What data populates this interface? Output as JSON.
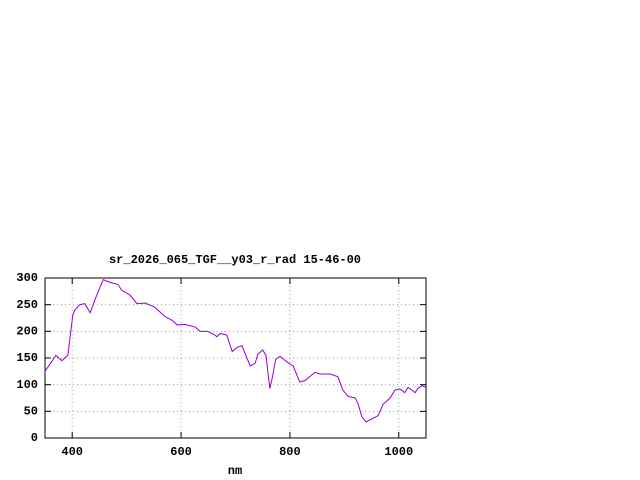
{
  "chart_data": {
    "type": "line",
    "title": "sr_2026_065_TGF__y03_r_rad 15-46-00",
    "x_label": "nm",
    "x": [
      350,
      370,
      381,
      392,
      401,
      405,
      414,
      423,
      433,
      442,
      457,
      469,
      484,
      491,
      506,
      519,
      534,
      552,
      570,
      583,
      593,
      607,
      626,
      635,
      648,
      659,
      666,
      672,
      684,
      694,
      703,
      712,
      717,
      727,
      736,
      741,
      750,
      756,
      763,
      767,
      774,
      782,
      795,
      806,
      818,
      828,
      846,
      855,
      874,
      888,
      897,
      907,
      920,
      925,
      932,
      940,
      951,
      962,
      971,
      984,
      993,
      1002,
      1011,
      1017,
      1024,
      1030,
      1035,
      1043,
      1050
    ],
    "series": [
      {
        "color": "#9400d3",
        "values": [
          125,
          155,
          145,
          155,
          230,
          240,
          250,
          252,
          235,
          260,
          297,
          292,
          288,
          277,
          268,
          252,
          253,
          245,
          228,
          221,
          212,
          213,
          208,
          200,
          200,
          195,
          190,
          196,
          193,
          162,
          170,
          173,
          160,
          135,
          140,
          157,
          165,
          155,
          93,
          110,
          148,
          153,
          142,
          135,
          105,
          108,
          123,
          120,
          120,
          115,
          90,
          78,
          75,
          65,
          40,
          30,
          36,
          42,
          63,
          75,
          90,
          92,
          85,
          95,
          90,
          85,
          93,
          98,
          95
        ]
      }
    ],
    "xlim": [
      350,
      1050
    ],
    "ylim": [
      0,
      300
    ],
    "xticks": [
      400,
      600,
      800,
      1000
    ],
    "yticks": [
      0,
      50,
      100,
      150,
      200,
      250,
      300
    ],
    "grid": true
  }
}
